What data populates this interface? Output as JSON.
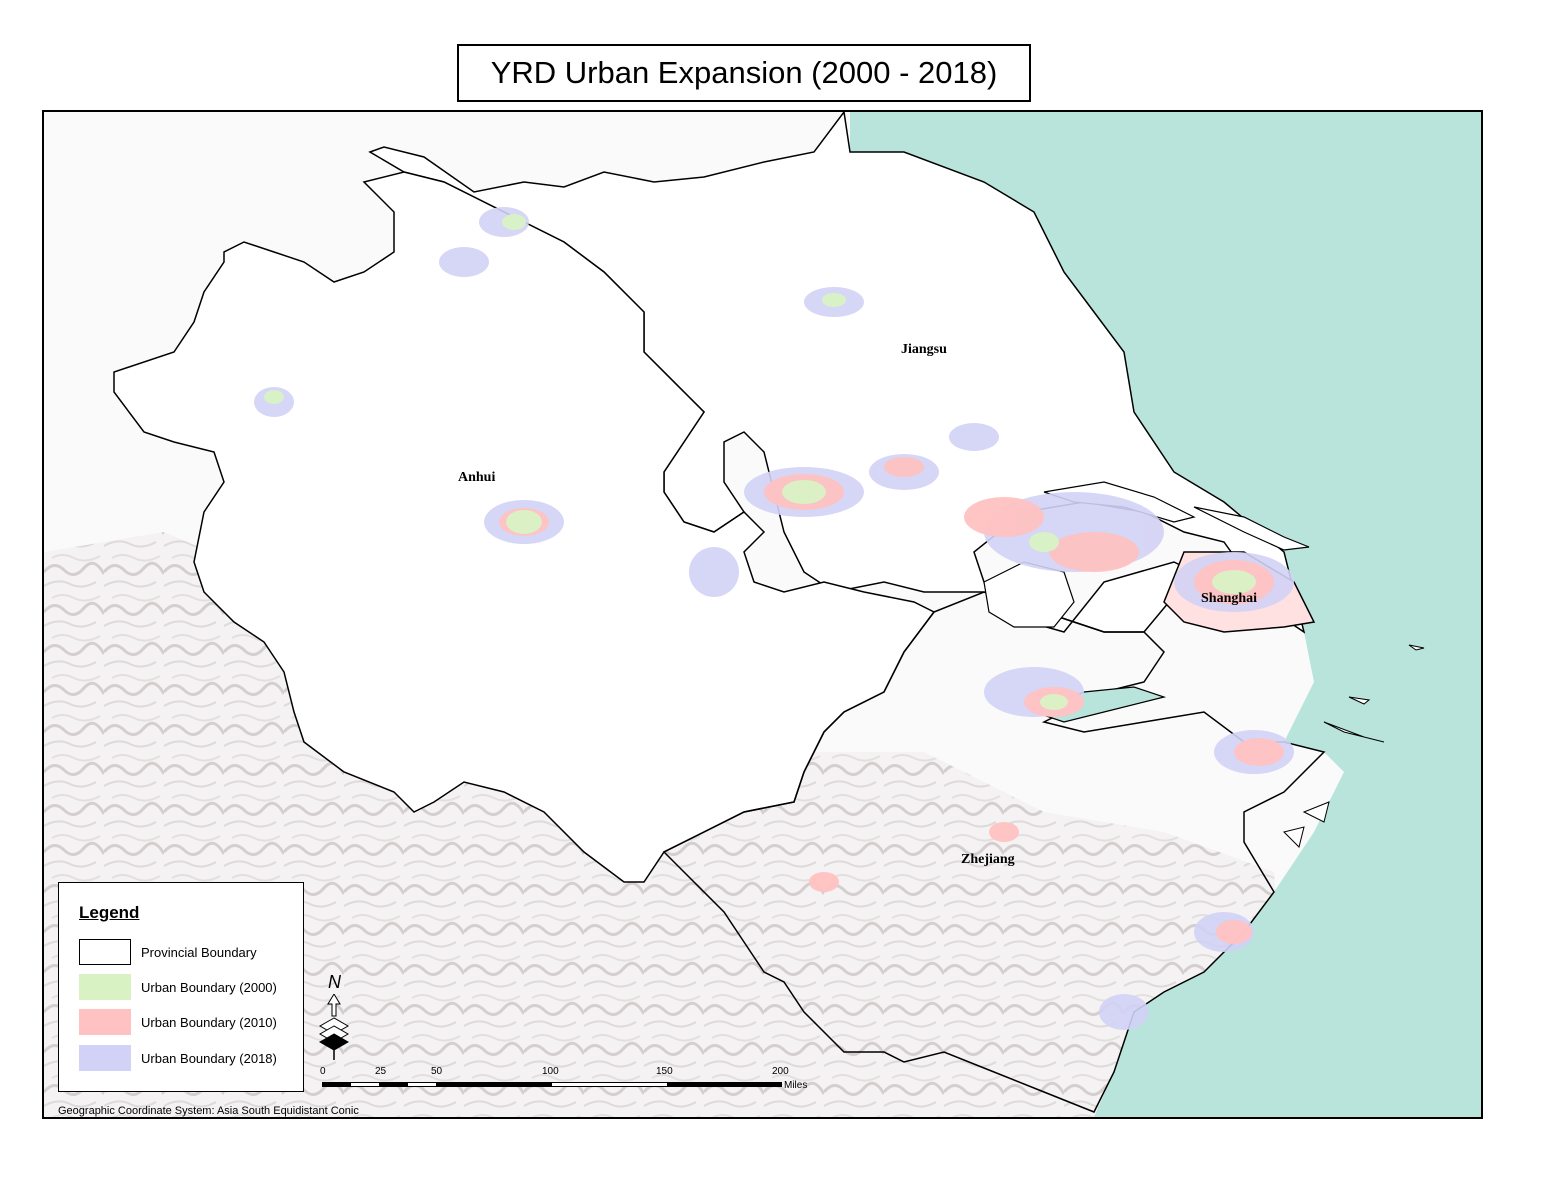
{
  "title": "YRD Urban Expansion (2000 - 2018)",
  "places": [
    {
      "name": "Jiangsu"
    },
    {
      "name": "Anhui"
    },
    {
      "name": "Shanghai"
    },
    {
      "name": "Zhejiang"
    }
  ],
  "legend": {
    "title": "Legend",
    "items": [
      {
        "label": "Provincial Boundary",
        "color": "#ffffff"
      },
      {
        "label": "Urban Boundary (2000)",
        "color": "#d9f2c4"
      },
      {
        "label": "Urban Boundary (2010)",
        "color": "#ffc2c2"
      },
      {
        "label": "Urban Boundary (2018)",
        "color": "#d2d2f6"
      }
    ]
  },
  "north_arrow": {
    "letter": "N"
  },
  "scale_bar": {
    "ticks": [
      "0",
      "25",
      "50",
      "100",
      "150",
      "200"
    ],
    "unit": "Miles"
  },
  "coordinate_system": "Geographic Coordinate System: Asia South Equidistant Conic",
  "colors": {
    "sea": "#b8e4dc",
    "terrain": "#d9d4d4",
    "urban_2000": "#d9f2c4",
    "urban_2010": "#ffc2c2",
    "urban_2018": "#d2d2f6",
    "boundary": "#000000"
  }
}
